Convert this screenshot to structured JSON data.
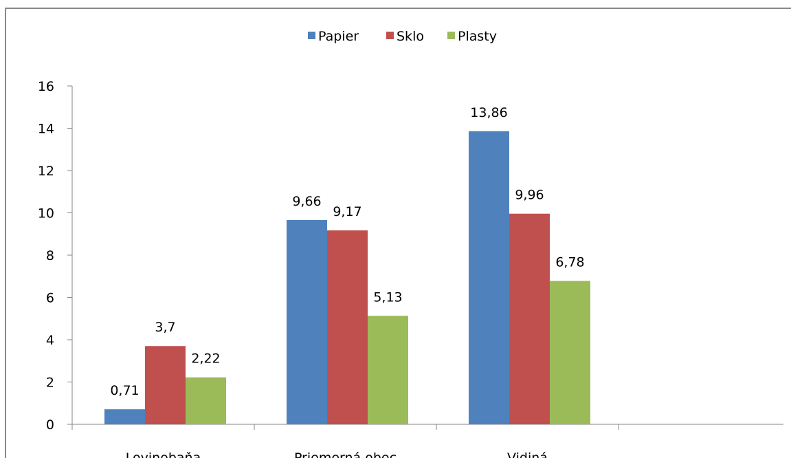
{
  "chart_data": {
    "type": "bar",
    "categories": [
      "Lovinobaňa",
      "Priemerná obec",
      "Vidiná"
    ],
    "series": [
      {
        "name": "Papier",
        "color": "#4f81bd",
        "values": [
          0.71,
          9.66,
          13.86
        ],
        "labels": [
          "0,71",
          "9,66",
          "13,86"
        ]
      },
      {
        "name": "Sklo",
        "color": "#c0504d",
        "values": [
          3.7,
          9.17,
          9.96
        ],
        "labels": [
          "3,7",
          "9,17",
          "9,96"
        ]
      },
      {
        "name": "Plasty",
        "color": "#9bbb59",
        "values": [
          2.22,
          5.13,
          6.78
        ],
        "labels": [
          "2,22",
          "5,13",
          "6,78"
        ]
      }
    ],
    "ylim": [
      0,
      16
    ],
    "yticks": [
      "0",
      "2",
      "4",
      "6",
      "8",
      "10",
      "12",
      "14",
      "16"
    ],
    "legend_position": "top",
    "grid": false
  }
}
